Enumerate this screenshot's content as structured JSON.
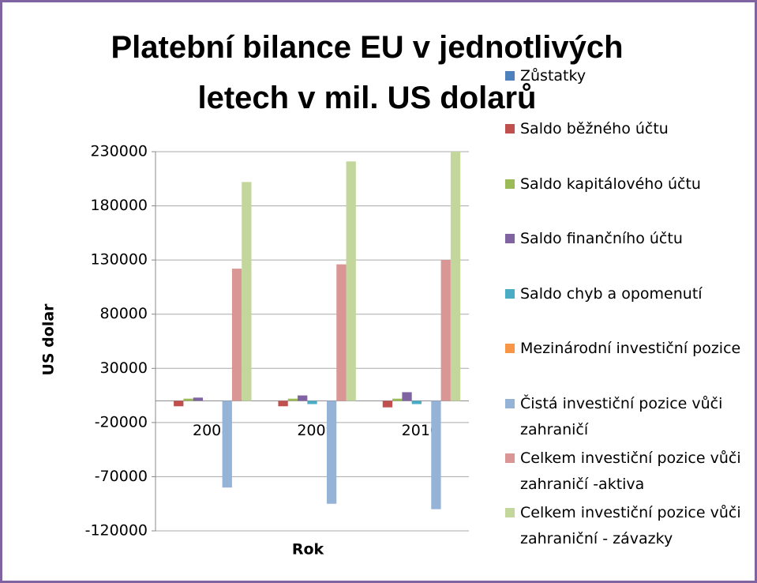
{
  "chart_data": {
    "type": "bar",
    "title": "Platební bilance EU v jednotlivých letech v mil. US dolarů",
    "x_label": "Rok",
    "y_label": "US dolar",
    "categories": [
      "2008",
      "2009",
      "2010"
    ],
    "series": [
      {
        "name": "Zůstatky",
        "color": "#4f81bd",
        "values": [
          0,
          0,
          0
        ]
      },
      {
        "name": "Saldo běžného účtu",
        "color": "#c0504d",
        "values": [
          -5000,
          -5000,
          -6000
        ]
      },
      {
        "name": "Saldo kapitálového účtu",
        "color": "#9bbb59",
        "values": [
          2000,
          2000,
          2000
        ]
      },
      {
        "name": "Saldo finančního účtu",
        "color": "#8064a2",
        "values": [
          3000,
          5000,
          8000
        ]
      },
      {
        "name": "Saldo chyb a opomenutí",
        "color": "#4bacc6",
        "values": [
          0,
          -3000,
          -3000
        ]
      },
      {
        "name": "Mezinárodní investiční pozice",
        "color": "#f79646",
        "values": [
          0,
          0,
          0
        ]
      },
      {
        "name": "Čistá investiční pozice vůči zahraničí",
        "color": "#95b3d7",
        "values": [
          -80000,
          -95000,
          -100000
        ]
      },
      {
        "name": "Celkem investiční pozice vůči zahraničí -aktiva",
        "color": "#d99694",
        "values": [
          122000,
          126000,
          130000
        ]
      },
      {
        "name": "Celkem investiční pozice vůči zahraniční - závazky",
        "color": "#c3d69b",
        "values": [
          202000,
          221000,
          230000
        ]
      }
    ],
    "ylim": [
      -120000,
      230000
    ],
    "yticks": [
      -120000,
      -70000,
      -20000,
      30000,
      80000,
      130000,
      180000,
      230000
    ],
    "grid": true
  }
}
